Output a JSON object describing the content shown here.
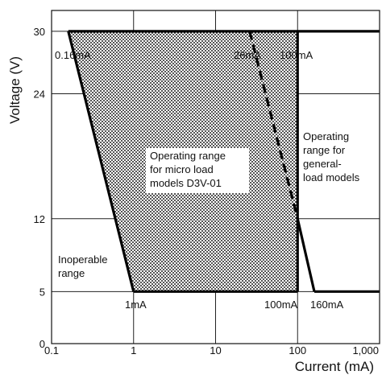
{
  "chart_data": {
    "type": "line",
    "xlabel": "Current (mA)",
    "ylabel": "Voltage (V)",
    "x_scale": "log",
    "xlim": [
      0.1,
      1000
    ],
    "ylim": [
      0,
      32
    ],
    "x_ticks": [
      {
        "value": 0.1,
        "label": "0.1"
      },
      {
        "value": 1,
        "label": "1"
      },
      {
        "value": 10,
        "label": "10"
      },
      {
        "value": 100,
        "label": "100"
      },
      {
        "value": 1000,
        "label": "1,000"
      }
    ],
    "y_ticks": [
      {
        "value": 0,
        "label": "0"
      },
      {
        "value": 5,
        "label": "5"
      },
      {
        "value": 12,
        "label": "12"
      },
      {
        "value": 24,
        "label": "24"
      },
      {
        "value": 30,
        "label": "30"
      }
    ],
    "grid": true,
    "lines": [
      {
        "role": "micro-load-left-boundary",
        "style": "solid",
        "points": [
          [
            0.16,
            30
          ],
          [
            1,
            5
          ]
        ]
      },
      {
        "role": "top-boundary",
        "style": "solid",
        "points": [
          [
            0.16,
            30
          ],
          [
            1000,
            30
          ]
        ]
      },
      {
        "role": "micro-load-bottom-boundary",
        "style": "solid",
        "points": [
          [
            1,
            5
          ],
          [
            100,
            5
          ]
        ]
      },
      {
        "role": "micro-load-right-boundary",
        "style": "solid",
        "points": [
          [
            100,
            30
          ],
          [
            100,
            5
          ]
        ]
      },
      {
        "role": "general-load-left-boundary",
        "style": "dashed",
        "points": [
          [
            26,
            30
          ],
          [
            100,
            12
          ]
        ]
      },
      {
        "role": "general-load-left-boundary",
        "style": "solid",
        "points": [
          [
            100,
            12
          ],
          [
            160,
            5
          ]
        ]
      },
      {
        "role": "general-load-bottom-boundary",
        "style": "solid",
        "points": [
          [
            160,
            5
          ],
          [
            1000,
            5
          ]
        ]
      }
    ],
    "shaded_region": {
      "pattern": "dots",
      "points": [
        [
          0.16,
          30
        ],
        [
          100,
          30
        ],
        [
          100,
          5
        ],
        [
          1,
          5
        ]
      ]
    },
    "annotations": [
      {
        "text": "0.16mA",
        "x": 0.16,
        "y": 30
      },
      {
        "text": "26mA",
        "x": 26,
        "y": 30
      },
      {
        "text": "100mA",
        "x": 100,
        "y": 30
      },
      {
        "text": "1mA",
        "x": 1,
        "y": 5
      },
      {
        "text": "100mA",
        "x": 100,
        "y": 5
      },
      {
        "text": "160mA",
        "x": 160,
        "y": 5
      }
    ],
    "region_labels": [
      {
        "lines": [
          "Operating range",
          "for micro load",
          "models D3V-01"
        ]
      },
      {
        "lines": [
          "Operating",
          "range for",
          "general-",
          "load models"
        ]
      },
      {
        "lines": [
          "Inoperable",
          "range"
        ]
      }
    ]
  }
}
